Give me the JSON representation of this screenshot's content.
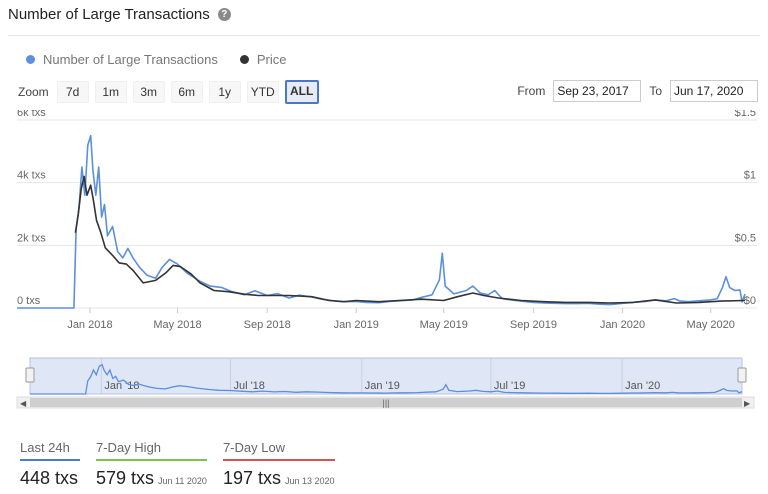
{
  "header": {
    "title": "Number of Large Transactions",
    "help_icon": "?"
  },
  "legend": [
    {
      "label": "Number of Large Transactions",
      "color": "#5b8fe0"
    },
    {
      "label": "Price",
      "color": "#333333"
    }
  ],
  "zoom": {
    "label": "Zoom",
    "buttons": [
      "7d",
      "1m",
      "3m",
      "6m",
      "1y",
      "YTD",
      "ALL"
    ],
    "active": "ALL"
  },
  "range": {
    "from_label": "From",
    "from_value": "Sep 23, 2017",
    "to_label": "To",
    "to_value": "Jun 17, 2020"
  },
  "chart_data": {
    "type": "line",
    "x_start": "2017-09-23",
    "x_end": "2020-06-17",
    "y_left": {
      "ticks": [
        "6k txs",
        "4k txs",
        "2k txs",
        "0 txs"
      ],
      "range": [
        0,
        6000
      ]
    },
    "y_right": {
      "ticks": [
        "$1.5",
        "$1",
        "$0.5",
        "$0"
      ],
      "range": [
        0,
        1.5
      ]
    },
    "x_ticks": [
      "Jan 2018",
      "May 2018",
      "Sep 2018",
      "Jan 2019",
      "May 2019",
      "Sep 2019",
      "Jan 2020",
      "May 2020"
    ],
    "navigator_ticks": [
      "Jan '18",
      "Jul '18",
      "Jan '19",
      "Jul '19",
      "Jan '20"
    ],
    "series": [
      {
        "name": "Number of Large Transactions",
        "color": "#5b8fe0",
        "points": [
          [
            "2017-09-23",
            0
          ],
          [
            "2017-12-10",
            0
          ],
          [
            "2017-12-13",
            2500
          ],
          [
            "2017-12-17",
            3200
          ],
          [
            "2017-12-21",
            4500
          ],
          [
            "2017-12-25",
            3600
          ],
          [
            "2017-12-29",
            5200
          ],
          [
            "2018-01-02",
            5500
          ],
          [
            "2018-01-05",
            4400
          ],
          [
            "2018-01-09",
            3600
          ],
          [
            "2018-01-13",
            4500
          ],
          [
            "2018-01-17",
            2900
          ],
          [
            "2018-01-21",
            3300
          ],
          [
            "2018-01-25",
            2300
          ],
          [
            "2018-02-01",
            2600
          ],
          [
            "2018-02-08",
            1800
          ],
          [
            "2018-02-15",
            1600
          ],
          [
            "2018-02-22",
            1900
          ],
          [
            "2018-03-01",
            1600
          ],
          [
            "2018-03-10",
            1300
          ],
          [
            "2018-03-20",
            1050
          ],
          [
            "2018-04-01",
            950
          ],
          [
            "2018-04-10",
            1300
          ],
          [
            "2018-04-20",
            1550
          ],
          [
            "2018-05-01",
            1400
          ],
          [
            "2018-05-15",
            1100
          ],
          [
            "2018-06-01",
            850
          ],
          [
            "2018-06-15",
            700
          ],
          [
            "2018-07-01",
            650
          ],
          [
            "2018-07-15",
            520
          ],
          [
            "2018-08-01",
            420
          ],
          [
            "2018-08-15",
            550
          ],
          [
            "2018-09-01",
            400
          ],
          [
            "2018-09-15",
            460
          ],
          [
            "2018-10-01",
            320
          ],
          [
            "2018-10-15",
            410
          ],
          [
            "2018-11-01",
            350
          ],
          [
            "2018-11-15",
            280
          ],
          [
            "2018-12-01",
            230
          ],
          [
            "2018-12-15",
            200
          ],
          [
            "2019-01-01",
            210
          ],
          [
            "2019-01-15",
            180
          ],
          [
            "2019-02-01",
            170
          ],
          [
            "2019-02-15",
            210
          ],
          [
            "2019-03-01",
            230
          ],
          [
            "2019-03-20",
            260
          ],
          [
            "2019-04-01",
            340
          ],
          [
            "2019-04-15",
            420
          ],
          [
            "2019-04-25",
            900
          ],
          [
            "2019-04-29",
            1750
          ],
          [
            "2019-05-03",
            700
          ],
          [
            "2019-05-15",
            450
          ],
          [
            "2019-06-01",
            560
          ],
          [
            "2019-06-10",
            700
          ],
          [
            "2019-06-20",
            480
          ],
          [
            "2019-07-01",
            420
          ],
          [
            "2019-07-10",
            560
          ],
          [
            "2019-07-20",
            300
          ],
          [
            "2019-08-01",
            260
          ],
          [
            "2019-08-15",
            220
          ],
          [
            "2019-09-01",
            180
          ],
          [
            "2019-09-15",
            160
          ],
          [
            "2019-10-01",
            150
          ],
          [
            "2019-10-15",
            140
          ],
          [
            "2019-11-01",
            140
          ],
          [
            "2019-11-15",
            150
          ],
          [
            "2019-12-01",
            120
          ],
          [
            "2019-12-15",
            110
          ],
          [
            "2020-01-01",
            150
          ],
          [
            "2020-01-15",
            180
          ],
          [
            "2020-02-01",
            210
          ],
          [
            "2020-02-15",
            260
          ],
          [
            "2020-03-01",
            230
          ],
          [
            "2020-03-12",
            300
          ],
          [
            "2020-03-20",
            220
          ],
          [
            "2020-04-01",
            200
          ],
          [
            "2020-04-15",
            230
          ],
          [
            "2020-05-01",
            260
          ],
          [
            "2020-05-10",
            300
          ],
          [
            "2020-05-17",
            650
          ],
          [
            "2020-05-22",
            1000
          ],
          [
            "2020-05-27",
            650
          ],
          [
            "2020-06-03",
            560
          ],
          [
            "2020-06-10",
            579
          ],
          [
            "2020-06-13",
            197
          ],
          [
            "2020-06-17",
            448
          ]
        ]
      },
      {
        "name": "Price",
        "color": "#333333",
        "points": [
          [
            "2017-12-12",
            0.6
          ],
          [
            "2017-12-16",
            0.75
          ],
          [
            "2017-12-20",
            0.95
          ],
          [
            "2017-12-24",
            1.05
          ],
          [
            "2017-12-28",
            0.9
          ],
          [
            "2018-01-02",
            0.98
          ],
          [
            "2018-01-06",
            0.85
          ],
          [
            "2018-01-10",
            0.7
          ],
          [
            "2018-01-16",
            0.6
          ],
          [
            "2018-01-22",
            0.48
          ],
          [
            "2018-02-01",
            0.42
          ],
          [
            "2018-02-10",
            0.36
          ],
          [
            "2018-02-20",
            0.35
          ],
          [
            "2018-03-01",
            0.3
          ],
          [
            "2018-03-15",
            0.2
          ],
          [
            "2018-04-01",
            0.22
          ],
          [
            "2018-04-15",
            0.28
          ],
          [
            "2018-04-25",
            0.34
          ],
          [
            "2018-05-05",
            0.33
          ],
          [
            "2018-05-20",
            0.27
          ],
          [
            "2018-06-01",
            0.2
          ],
          [
            "2018-06-20",
            0.14
          ],
          [
            "2018-07-10",
            0.13
          ],
          [
            "2018-08-01",
            0.11
          ],
          [
            "2018-08-20",
            0.1
          ],
          [
            "2018-09-10",
            0.1
          ],
          [
            "2018-10-01",
            0.1
          ],
          [
            "2018-11-01",
            0.09
          ],
          [
            "2018-11-25",
            0.06
          ],
          [
            "2018-12-15",
            0.05
          ],
          [
            "2019-01-01",
            0.06
          ],
          [
            "2019-02-01",
            0.05
          ],
          [
            "2019-03-01",
            0.06
          ],
          [
            "2019-04-01",
            0.07
          ],
          [
            "2019-05-01",
            0.06
          ],
          [
            "2019-05-20",
            0.09
          ],
          [
            "2019-06-10",
            0.12
          ],
          [
            "2019-06-25",
            0.1
          ],
          [
            "2019-07-15",
            0.08
          ],
          [
            "2019-08-15",
            0.06
          ],
          [
            "2019-09-15",
            0.05
          ],
          [
            "2019-10-15",
            0.045
          ],
          [
            "2019-11-15",
            0.045
          ],
          [
            "2019-12-15",
            0.04
          ],
          [
            "2020-01-15",
            0.045
          ],
          [
            "2020-02-15",
            0.065
          ],
          [
            "2020-03-15",
            0.04
          ],
          [
            "2020-04-15",
            0.045
          ],
          [
            "2020-05-15",
            0.055
          ],
          [
            "2020-06-17",
            0.06
          ]
        ]
      }
    ]
  },
  "stats": [
    {
      "label": "Last 24h",
      "value": "448 txs",
      "date": "",
      "color": "#4a7fd0"
    },
    {
      "label": "7-Day High",
      "value": "579 txs",
      "date": "Jun 11 2020",
      "color": "#7dc24b"
    },
    {
      "label": "7-Day Low",
      "value": "197 txs",
      "date": "Jun 13 2020",
      "color": "#d9534f"
    }
  ]
}
